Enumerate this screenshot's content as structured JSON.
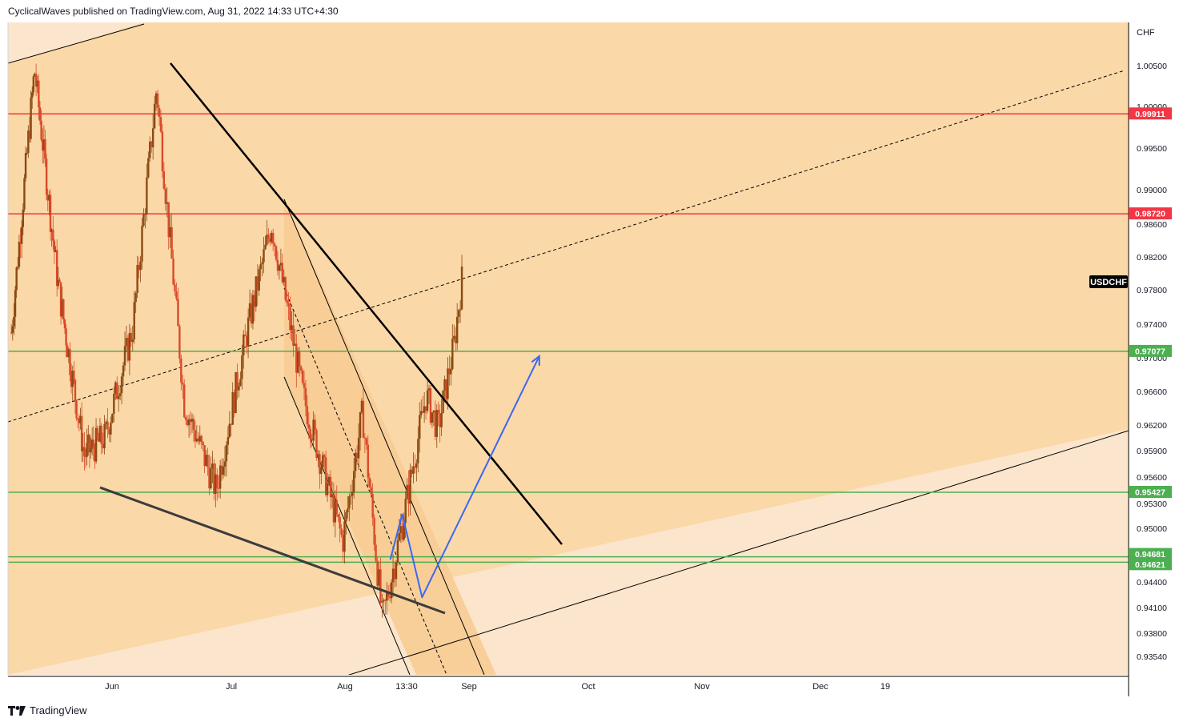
{
  "header": {
    "publisher_line": "CyclicalWaves published on TradingView.com, Aug 31, 2022 14:33 UTC+4:30"
  },
  "footer": {
    "brand": "TradingView"
  },
  "colors": {
    "background": "#ffffff",
    "chart_fill": "#fbd8a8",
    "channel_fill": "#fce5cd",
    "inner_channel_fill": "#f7cc94",
    "resistance_red": "#f23645",
    "support_green": "#4caf50",
    "projection_blue": "#3968f5",
    "candle_body": "#b5651d",
    "ticker_badge": "#000000"
  },
  "chart_data": {
    "type": "candlestick",
    "symbol": "USDCHF",
    "currency": "CHF",
    "ylim": [
      0.9325,
      1.0082
    ],
    "y_ticks": [
      "1.00500",
      "1.00000",
      "0.99500",
      "0.99000",
      "0.98600",
      "0.98200",
      "0.97800",
      "0.97400",
      "0.97000",
      "0.96600",
      "0.96200",
      "0.95900",
      "0.95600",
      "0.95300",
      "0.95000",
      "0.94400",
      "0.94100",
      "0.93800",
      "0.93540"
    ],
    "x_ticks": [
      "Jun",
      "Jul",
      "Aug",
      "13:30",
      "Sep",
      "Oct",
      "Nov",
      "Dec",
      "19"
    ],
    "price_lines": [
      {
        "value": 0.99911,
        "label": "0.99911",
        "color": "red"
      },
      {
        "value": 0.9872,
        "label": "0.98720",
        "color": "red"
      },
      {
        "value": 0.97077,
        "label": "0.97077",
        "color": "green"
      },
      {
        "value": 0.95427,
        "label": "0.95427",
        "color": "green"
      },
      {
        "value": 0.94681,
        "label": "0.94681",
        "color": "green"
      },
      {
        "value": 0.94621,
        "label": "0.94621",
        "color": "green"
      }
    ],
    "last_price_label": "USDCHF",
    "price_path": [
      {
        "date": "2022-05-05",
        "price": 0.973
      },
      {
        "date": "2022-05-12",
        "price": 1.0045
      },
      {
        "date": "2022-05-19",
        "price": 0.979
      },
      {
        "date": "2022-05-27",
        "price": 0.9585
      },
      {
        "date": "2022-06-02",
        "price": 0.9605
      },
      {
        "date": "2022-06-09",
        "price": 0.9735
      },
      {
        "date": "2022-06-15",
        "price": 1.0022
      },
      {
        "date": "2022-06-22",
        "price": 0.9645
      },
      {
        "date": "2022-06-30",
        "price": 0.9545
      },
      {
        "date": "2022-07-08",
        "price": 0.9735
      },
      {
        "date": "2022-07-14",
        "price": 0.986
      },
      {
        "date": "2022-07-22",
        "price": 0.9655
      },
      {
        "date": "2022-08-01",
        "price": 0.9485
      },
      {
        "date": "2022-08-06",
        "price": 0.9635
      },
      {
        "date": "2022-08-11",
        "price": 0.9395
      },
      {
        "date": "2022-08-16",
        "price": 0.9505
      },
      {
        "date": "2022-08-22",
        "price": 0.9655
      },
      {
        "date": "2022-08-25",
        "price": 0.9615
      },
      {
        "date": "2022-08-29",
        "price": 0.9715
      },
      {
        "date": "2022-08-31",
        "price": 0.9792
      }
    ],
    "projection": [
      {
        "date": "2022-08-13",
        "price": 0.9465
      },
      {
        "date": "2022-08-16",
        "price": 0.9517
      },
      {
        "date": "2022-08-21",
        "price": 0.9422
      },
      {
        "date": "2022-09-19",
        "price": 0.9702
      }
    ]
  }
}
